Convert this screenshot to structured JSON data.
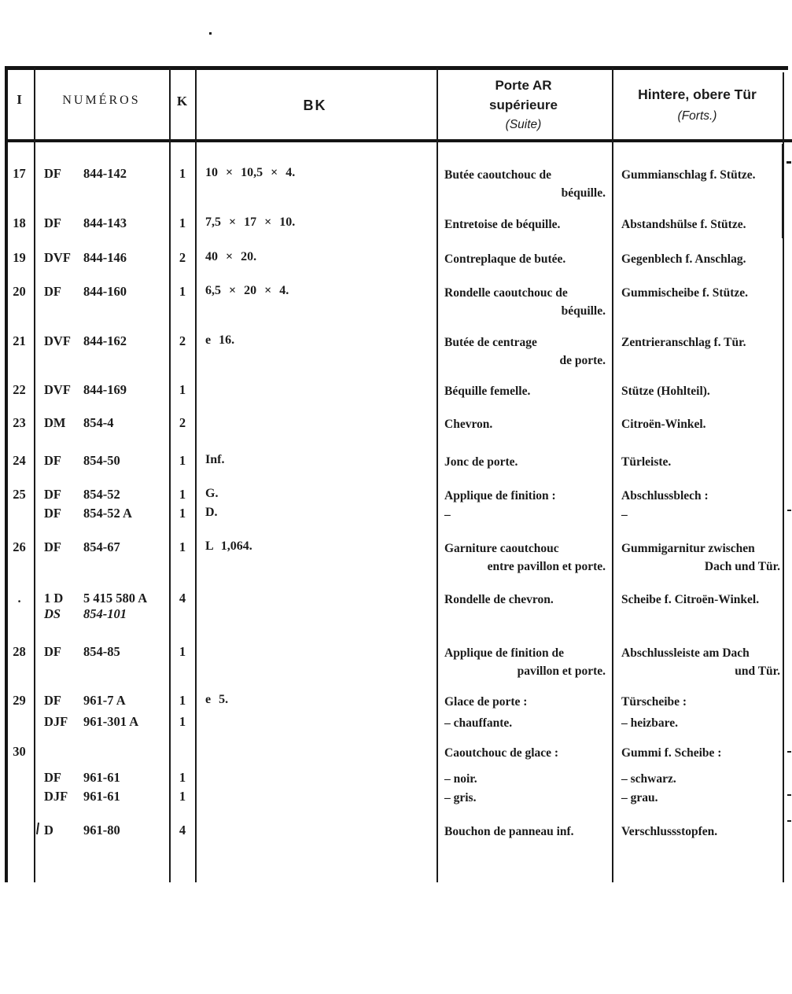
{
  "header": {
    "index_col": "I",
    "numbers_col": "NUMÉROS",
    "quantity_col": "K",
    "bk_col": "BK",
    "french_col": {
      "line1": "Porte AR",
      "line2": "supérieure",
      "note": "(Suite)"
    },
    "german_col": {
      "title": "Hintere, obere Tür",
      "note": "(Forts.)"
    }
  },
  "rows": [
    {
      "i": "17",
      "num": [
        {
          "prefix": "DF",
          "number": "844-142"
        }
      ],
      "k": "1",
      "bk": "10 × 10,5 × 4.",
      "fr": [
        "Butée caoutchouc de",
        "béquille."
      ],
      "de": [
        "Gummianschlag f. Stütze."
      ]
    },
    {
      "i": "18",
      "num": [
        {
          "prefix": "DF",
          "number": "844-143"
        }
      ],
      "k": "1",
      "bk": "7,5 × 17 × 10.",
      "fr": [
        "Entretoise de béquille."
      ],
      "de": [
        "Abstandshülse f. Stütze."
      ]
    },
    {
      "i": "19",
      "num": [
        {
          "prefix": "DVF",
          "number": "844-146"
        }
      ],
      "k": "2",
      "bk": "40 × 20.",
      "fr": [
        "Contreplaque de butée."
      ],
      "de": [
        "Gegenblech f. Anschlag."
      ]
    },
    {
      "i": "20",
      "num": [
        {
          "prefix": "DF",
          "number": "844-160"
        }
      ],
      "k": "1",
      "bk": "6,5 × 20 × 4.",
      "fr": [
        "Rondelle caoutchouc de",
        "béquille."
      ],
      "de": [
        "Gummischeibe f. Stütze."
      ]
    },
    {
      "i": "21",
      "num": [
        {
          "prefix": "DVF",
          "number": "844-162"
        }
      ],
      "k": "2",
      "bk": "e 16.",
      "fr": [
        "Butée de centrage",
        "de porte."
      ],
      "de": [
        "Zentrieranschlag f. Tür."
      ]
    },
    {
      "i": "22",
      "num": [
        {
          "prefix": "DVF",
          "number": "844-169"
        }
      ],
      "k": "1",
      "bk": "",
      "fr": [
        "Béquille femelle."
      ],
      "de": [
        "Stütze (Hohlteil)."
      ]
    },
    {
      "i": "23",
      "num": [
        {
          "prefix": "DM",
          "number": "854-4"
        }
      ],
      "k": "2",
      "bk": "",
      "fr": [
        "Chevron."
      ],
      "de": [
        "Citroën-Winkel."
      ]
    },
    {
      "i": "24",
      "num": [
        {
          "prefix": "DF",
          "number": "854-50"
        }
      ],
      "k": "1",
      "bk": "Inf.",
      "fr": [
        "Jonc de porte."
      ],
      "de": [
        "Türleiste."
      ]
    },
    {
      "i": "25",
      "num": [
        {
          "prefix": "DF",
          "number": "854-52"
        }
      ],
      "k": "1",
      "bk": "G.",
      "fr": [
        "Applique de finition :"
      ],
      "de": [
        "Abschlussblech :"
      ]
    },
    {
      "i": "",
      "num": [
        {
          "prefix": "DF",
          "number": "854-52 A"
        }
      ],
      "k": "1",
      "bk": "D.",
      "fr": [
        "–"
      ],
      "de": [
        "–"
      ]
    },
    {
      "i": "26",
      "num": [
        {
          "prefix": "DF",
          "number": "854-67"
        }
      ],
      "k": "1",
      "bk": "L 1,064.",
      "fr": [
        "Garniture caoutchouc",
        "entre pavillon et porte."
      ],
      "de": [
        "Gummigarnitur zwischen",
        "Dach und Tür."
      ]
    },
    {
      "i": ".",
      "num": [
        {
          "prefix": "1 D",
          "number": "5 415 580 A"
        },
        {
          "prefix": "DS",
          "number": "854-101",
          "italic": true
        }
      ],
      "k": "4",
      "bk": "",
      "fr": [
        "Rondelle de chevron."
      ],
      "de": [
        "Scheibe f. Citroën-Winkel."
      ]
    },
    {
      "i": "28",
      "num": [
        {
          "prefix": "DF",
          "number": "854-85"
        }
      ],
      "k": "1",
      "bk": "",
      "fr": [
        "Applique de finition de",
        "pavillon et porte."
      ],
      "de": [
        "Abschlussleiste am Dach",
        "und Tür."
      ]
    },
    {
      "i": "29",
      "num": [
        {
          "prefix": "DF",
          "number": "961-7 A"
        }
      ],
      "k": "1",
      "bk": "e 5.",
      "fr": [
        "Glace de porte :"
      ],
      "de": [
        "Türscheibe :"
      ]
    },
    {
      "i": "",
      "num": [
        {
          "prefix": "DJF",
          "number": "961-301 A"
        }
      ],
      "k": "1",
      "bk": "",
      "fr": [
        "– chauffante."
      ],
      "de": [
        "– heizbare."
      ]
    },
    {
      "i": "30",
      "num": [],
      "k": "",
      "bk": "",
      "fr": [
        "Caoutchouc de glace :"
      ],
      "de": [
        "Gummi f. Scheibe :"
      ]
    },
    {
      "i": "",
      "num": [
        {
          "prefix": "DF",
          "number": "961-61"
        }
      ],
      "k": "1",
      "bk": "",
      "fr": [
        "– noir."
      ],
      "de": [
        "– schwarz."
      ]
    },
    {
      "i": "",
      "num": [
        {
          "prefix": "DJF",
          "number": "961-61"
        }
      ],
      "k": "1",
      "bk": "",
      "fr": [
        "– gris."
      ],
      "de": [
        "– grau."
      ]
    },
    {
      "i": "",
      "num": [
        {
          "prefix": "D",
          "number": "961-80"
        }
      ],
      "k": "4",
      "bk": "",
      "fr": [
        "Bouchon de panneau inf."
      ],
      "de": [
        "Verschlussstopfen."
      ]
    }
  ],
  "ink_color": "#1b1b1b",
  "paper_color": "#ffffff"
}
